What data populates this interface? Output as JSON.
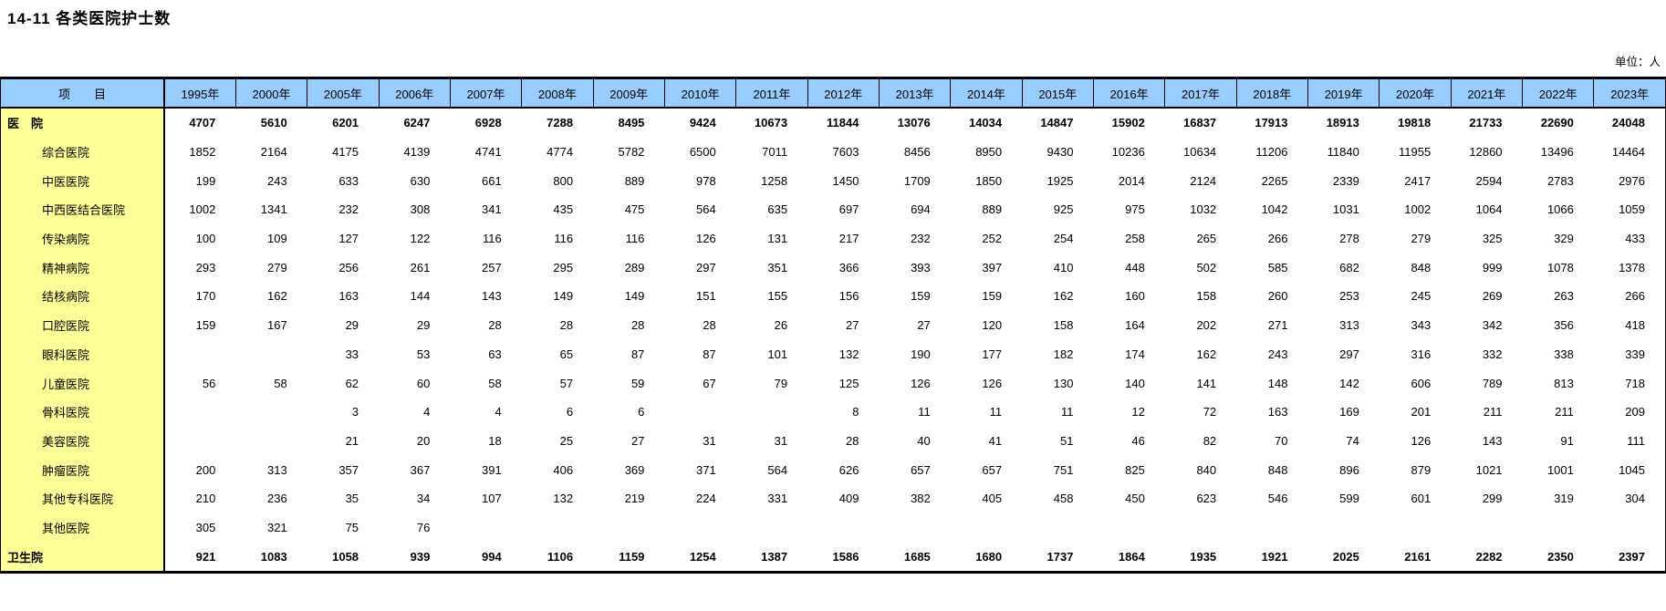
{
  "title": "14-11 各类医院护士数",
  "unit_label": "单位：人",
  "table": {
    "item_header": "项　　目",
    "year_columns": [
      "1995年",
      "2000年",
      "2005年",
      "2006年",
      "2007年",
      "2008年",
      "2009年",
      "2010年",
      "2011年",
      "2012年",
      "2013年",
      "2014年",
      "2015年",
      "2016年",
      "2017年",
      "2018年",
      "2019年",
      "2020年",
      "2021年",
      "2022年",
      "2023年"
    ],
    "rows": [
      {
        "label": "医　院",
        "indent": false,
        "bold": true,
        "values": [
          "4707",
          "5610",
          "6201",
          "6247",
          "6928",
          "7288",
          "8495",
          "9424",
          "10673",
          "11844",
          "13076",
          "14034",
          "14847",
          "15902",
          "16837",
          "17913",
          "18913",
          "19818",
          "21733",
          "22690",
          "24048"
        ]
      },
      {
        "label": "综合医院",
        "indent": true,
        "bold": false,
        "values": [
          "1852",
          "2164",
          "4175",
          "4139",
          "4741",
          "4774",
          "5782",
          "6500",
          "7011",
          "7603",
          "8456",
          "8950",
          "9430",
          "10236",
          "10634",
          "11206",
          "11840",
          "11955",
          "12860",
          "13496",
          "14464"
        ]
      },
      {
        "label": "中医医院",
        "indent": true,
        "bold": false,
        "values": [
          "199",
          "243",
          "633",
          "630",
          "661",
          "800",
          "889",
          "978",
          "1258",
          "1450",
          "1709",
          "1850",
          "1925",
          "2014",
          "2124",
          "2265",
          "2339",
          "2417",
          "2594",
          "2783",
          "2976"
        ]
      },
      {
        "label": "中西医结合医院",
        "indent": true,
        "bold": false,
        "values": [
          "1002",
          "1341",
          "232",
          "308",
          "341",
          "435",
          "475",
          "564",
          "635",
          "697",
          "694",
          "889",
          "925",
          "975",
          "1032",
          "1042",
          "1031",
          "1002",
          "1064",
          "1066",
          "1059"
        ]
      },
      {
        "label": "传染病院",
        "indent": true,
        "bold": false,
        "values": [
          "100",
          "109",
          "127",
          "122",
          "116",
          "116",
          "116",
          "126",
          "131",
          "217",
          "232",
          "252",
          "254",
          "258",
          "265",
          "266",
          "278",
          "279",
          "325",
          "329",
          "433"
        ]
      },
      {
        "label": "精神病院",
        "indent": true,
        "bold": false,
        "values": [
          "293",
          "279",
          "256",
          "261",
          "257",
          "295",
          "289",
          "297",
          "351",
          "366",
          "393",
          "397",
          "410",
          "448",
          "502",
          "585",
          "682",
          "848",
          "999",
          "1078",
          "1378"
        ]
      },
      {
        "label": "结核病院",
        "indent": true,
        "bold": false,
        "values": [
          "170",
          "162",
          "163",
          "144",
          "143",
          "149",
          "149",
          "151",
          "155",
          "156",
          "159",
          "159",
          "162",
          "160",
          "158",
          "260",
          "253",
          "245",
          "269",
          "263",
          "266"
        ]
      },
      {
        "label": "口腔医院",
        "indent": true,
        "bold": false,
        "values": [
          "159",
          "167",
          "29",
          "29",
          "28",
          "28",
          "28",
          "28",
          "26",
          "27",
          "27",
          "120",
          "158",
          "164",
          "202",
          "271",
          "313",
          "343",
          "342",
          "356",
          "418"
        ]
      },
      {
        "label": "眼科医院",
        "indent": true,
        "bold": false,
        "values": [
          "",
          "",
          "33",
          "53",
          "63",
          "65",
          "87",
          "87",
          "101",
          "132",
          "190",
          "177",
          "182",
          "174",
          "162",
          "243",
          "297",
          "316",
          "332",
          "338",
          "339"
        ]
      },
      {
        "label": "儿童医院",
        "indent": true,
        "bold": false,
        "values": [
          "56",
          "58",
          "62",
          "60",
          "58",
          "57",
          "59",
          "67",
          "79",
          "125",
          "126",
          "126",
          "130",
          "140",
          "141",
          "148",
          "142",
          "606",
          "789",
          "813",
          "718"
        ]
      },
      {
        "label": "骨科医院",
        "indent": true,
        "bold": false,
        "values": [
          "",
          "",
          "3",
          "4",
          "4",
          "6",
          "6",
          "",
          "",
          "8",
          "11",
          "11",
          "11",
          "12",
          "72",
          "163",
          "169",
          "201",
          "211",
          "211",
          "209"
        ]
      },
      {
        "label": "美容医院",
        "indent": true,
        "bold": false,
        "values": [
          "",
          "",
          "21",
          "20",
          "18",
          "25",
          "27",
          "31",
          "31",
          "28",
          "40",
          "41",
          "51",
          "46",
          "82",
          "70",
          "74",
          "126",
          "143",
          "91",
          "111"
        ]
      },
      {
        "label": "肿瘤医院",
        "indent": true,
        "bold": false,
        "values": [
          "200",
          "313",
          "357",
          "367",
          "391",
          "406",
          "369",
          "371",
          "564",
          "626",
          "657",
          "657",
          "751",
          "825",
          "840",
          "848",
          "896",
          "879",
          "1021",
          "1001",
          "1045"
        ]
      },
      {
        "label": "其他专科医院",
        "indent": true,
        "bold": false,
        "values": [
          "210",
          "236",
          "35",
          "34",
          "107",
          "132",
          "219",
          "224",
          "331",
          "409",
          "382",
          "405",
          "458",
          "450",
          "623",
          "546",
          "599",
          "601",
          "299",
          "319",
          "304"
        ]
      },
      {
        "label": "其他医院",
        "indent": true,
        "bold": false,
        "values": [
          "305",
          "321",
          "75",
          "76",
          "",
          "",
          "",
          "",
          "",
          "",
          "",
          "",
          "",
          "",
          "",
          "",
          "",
          "",
          "",
          "",
          ""
        ]
      },
      {
        "label": "卫生院",
        "indent": false,
        "bold": true,
        "values": [
          "921",
          "1083",
          "1058",
          "939",
          "994",
          "1106",
          "1159",
          "1254",
          "1387",
          "1586",
          "1685",
          "1680",
          "1737",
          "1864",
          "1935",
          "1921",
          "2025",
          "2161",
          "2282",
          "2350",
          "2397"
        ]
      }
    ]
  }
}
